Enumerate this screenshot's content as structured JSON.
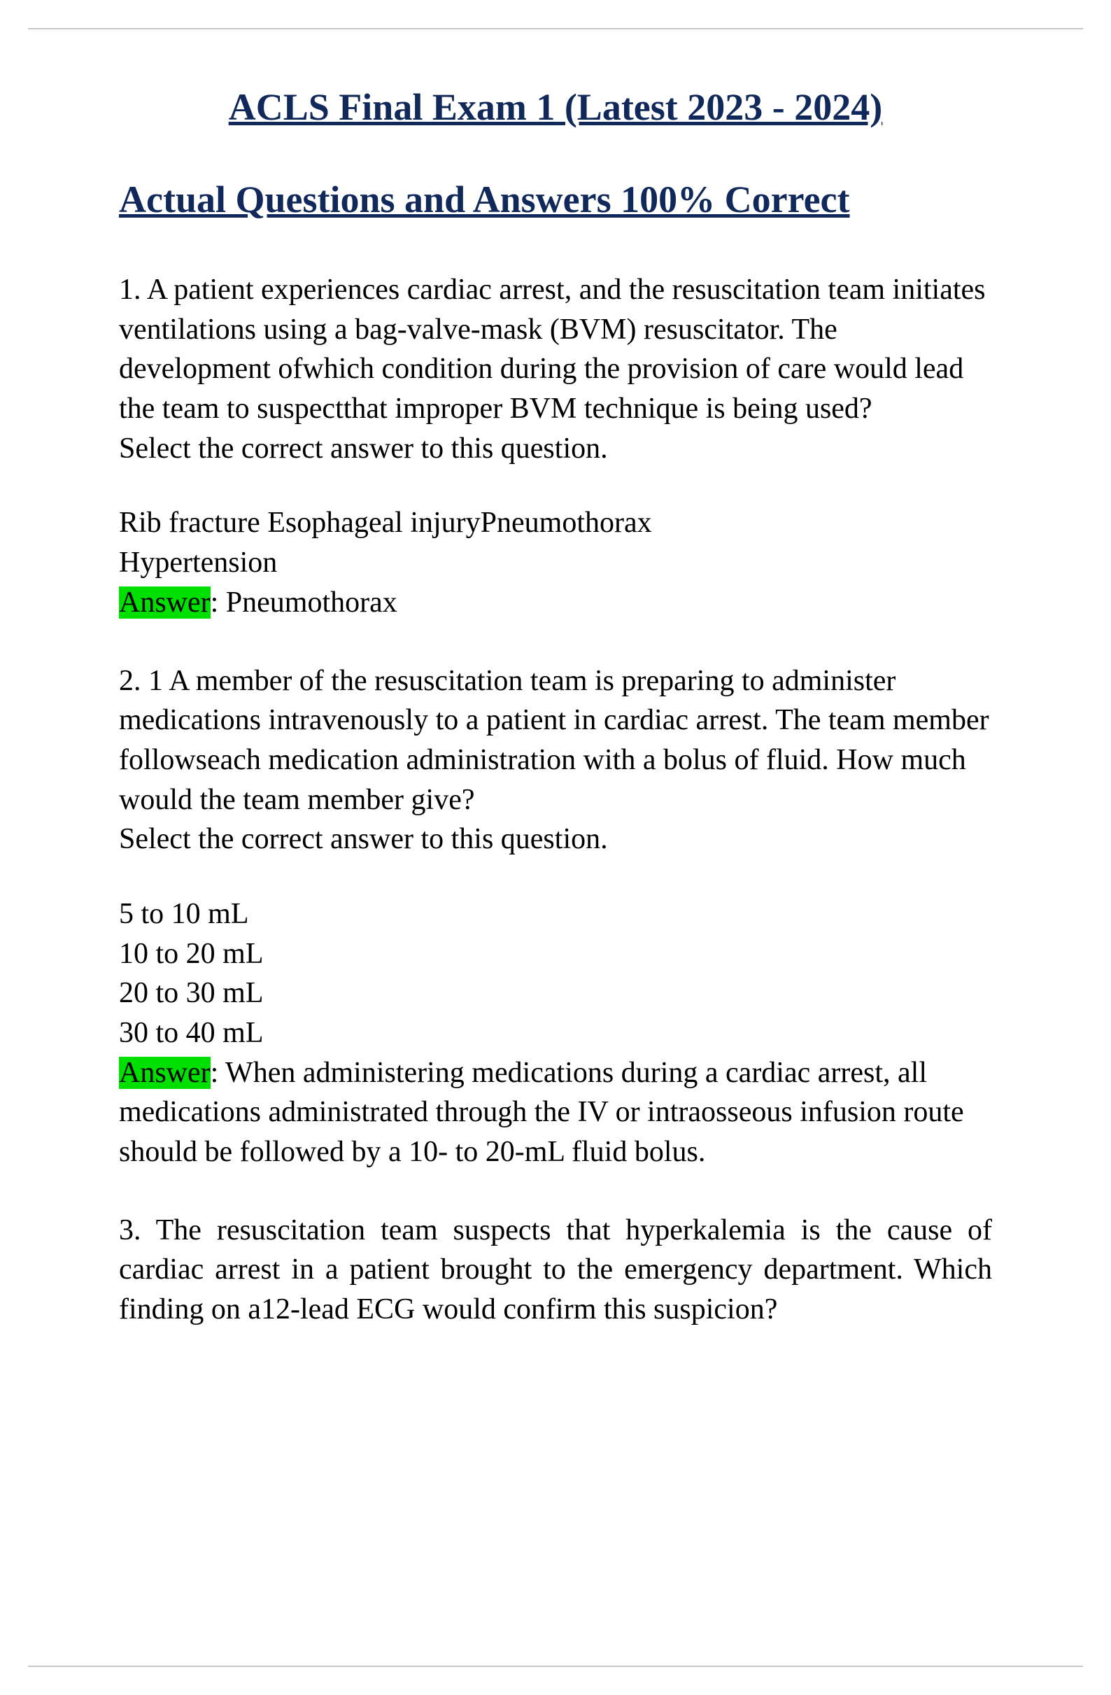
{
  "document": {
    "title_line1": "ACLS Final Exam 1 (Latest 2023 - 2024)",
    "title_line2": "Actual Questions and Answers 100% Correct",
    "title_color": "#10295a",
    "title_fontsize_pt": 40,
    "body_fontsize_pt": 32,
    "body_color": "#000000",
    "highlight_color": "#00e000",
    "rule_color": "#c8c8c8",
    "background_color": "#ffffff",
    "font_family": "Times New Roman"
  },
  "questions": [
    {
      "number": "1.",
      "prompt": "A patient experiences cardiac arrest, and the resuscitation team initiates ventilations using a bag-valve-mask (BVM) resuscitator. The development ofwhich condition during the provision of care would lead the team to suspectthat improper BVM technique is being used?",
      "instruction": "Select the correct answer to this question.",
      "options_inline": "Rib fracture Esophageal injuryPneumothorax",
      "options_list": [
        "Hypertension"
      ],
      "answer_label": "Answer",
      "answer_text": ": Pneumothorax"
    },
    {
      "number": "2. 1",
      "prompt": "A member of the resuscitation team is preparing to administer medications intravenously to a patient in cardiac arrest. The team member followseach medication administration with a bolus of fluid. How much would the team member give?",
      "instruction": "Select the correct answer to this question.",
      "options_list": [
        "5 to 10 mL",
        "10 to 20 mL",
        "20 to 30 mL",
        "30 to 40 mL"
      ],
      "answer_label": "Answer",
      "answer_text": ": When administering medications during a cardiac arrest, all medications administrated through the IV or intraosseous infusion route should be followed by a 10- to 20-mL fluid bolus."
    },
    {
      "number": "3.",
      "prompt": "The resuscitation team suspects that hyperkalemia is the cause of cardiac arrest in a patient brought to the emergency department. Which finding on a12-lead ECG would confirm this suspicion?",
      "justify": true
    }
  ]
}
